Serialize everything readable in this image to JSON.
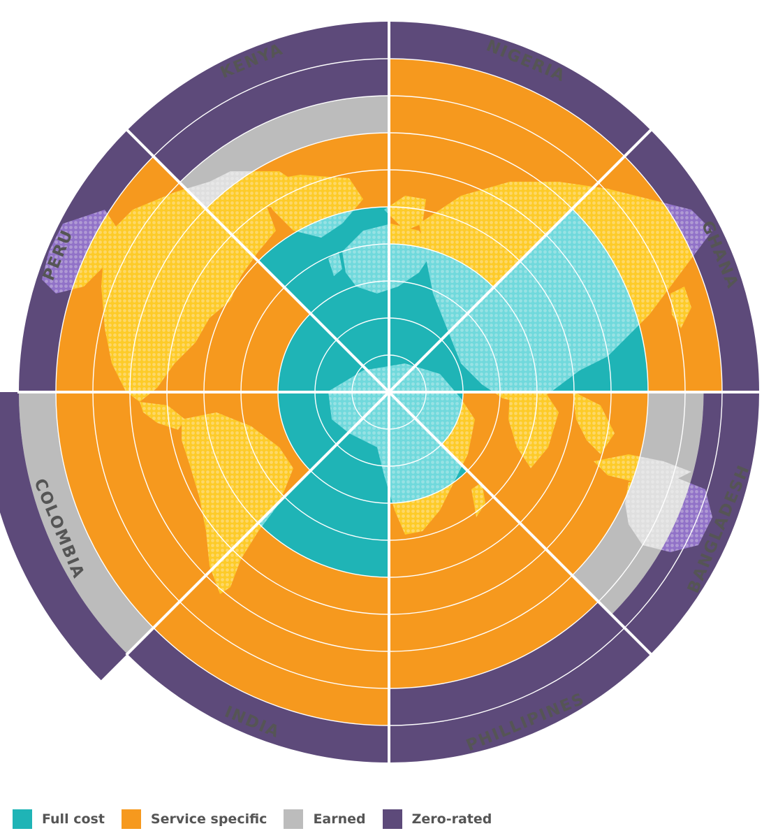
{
  "chart_data": {
    "type": "radial-bar",
    "categories": [
      "NIGERIA",
      "GHANA",
      "BANGLADESH",
      "PHILLIPINES",
      "INDIA",
      "COLOMBIA",
      "PERU",
      "KENYA"
    ],
    "rings": 10,
    "series": [
      {
        "name": "Full cost",
        "values": [
          4,
          7,
          2,
          3,
          5,
          3,
          3,
          5
        ]
      },
      {
        "name": "Service specific",
        "values": [
          5,
          2,
          5,
          5,
          4,
          6,
          6,
          2
        ]
      },
      {
        "name": "Earned",
        "values": [
          0,
          0,
          1.5,
          0,
          0,
          1,
          0,
          1
        ]
      },
      {
        "name": "Zero-rated",
        "values": [
          1,
          1,
          1.5,
          2,
          1,
          1,
          1,
          2
        ]
      }
    ],
    "colors": {
      "Full cost": "#1fb4b6",
      "Service specific": "#f6991e",
      "Earned": "#bcbcbc",
      "Zero-rated": "#5d4a7a",
      "map_on_full_cost": "#7fe0e3",
      "map_on_service_specific": "#ffd42a",
      "map_on_earned": "#e6e6e6",
      "map_on_zero_rated": "#9b7ad6"
    },
    "background_pattern": "dotted world map"
  },
  "legend": {
    "items": [
      {
        "label": "Full cost",
        "color": "#1fb4b6"
      },
      {
        "label": "Service specific",
        "color": "#f6991e"
      },
      {
        "label": "Earned",
        "color": "#bcbcbc"
      },
      {
        "label": "Zero-rated",
        "color": "#5d4a7a"
      }
    ]
  }
}
